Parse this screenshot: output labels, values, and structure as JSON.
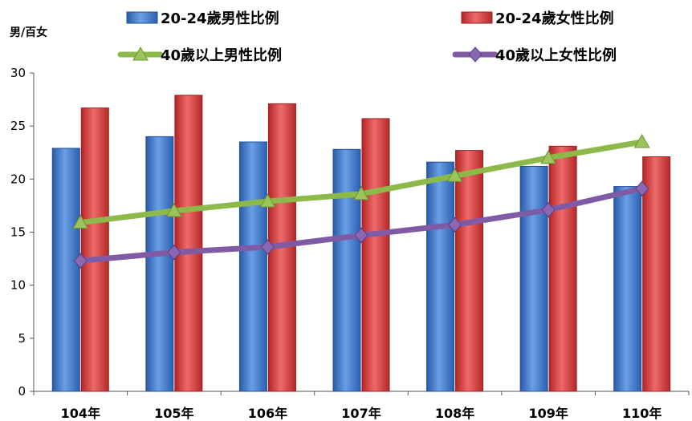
{
  "chart_data": {
    "type": "bar",
    "ylabel": "男/百女",
    "ylim": [
      0,
      30
    ],
    "yticks": [
      0,
      5,
      10,
      15,
      20,
      25,
      30
    ],
    "categories": [
      "104年",
      "105年",
      "106年",
      "107年",
      "108年",
      "109年",
      "110年"
    ],
    "series": [
      {
        "name": "20-24歲男性比例",
        "type": "bar",
        "color": "#3b72c9",
        "values": [
          22.9,
          24.0,
          23.5,
          22.8,
          21.6,
          21.2,
          19.3
        ]
      },
      {
        "name": "20-24歲女性比例",
        "type": "bar",
        "color": "#d6393a",
        "values": [
          26.7,
          27.9,
          27.1,
          25.7,
          22.7,
          23.1,
          22.1
        ]
      },
      {
        "name": "40歲以上男性比例",
        "type": "line",
        "marker": "triangle",
        "color": "#8db94a",
        "values": [
          15.9,
          17.0,
          17.9,
          18.6,
          20.3,
          22.0,
          23.5
        ]
      },
      {
        "name": "40歲以上女性比例",
        "type": "line",
        "marker": "diamond",
        "color": "#7f5ba6",
        "values": [
          12.3,
          13.1,
          13.6,
          14.7,
          15.7,
          17.1,
          19.1
        ]
      }
    ],
    "legend": "top",
    "grid": false
  }
}
